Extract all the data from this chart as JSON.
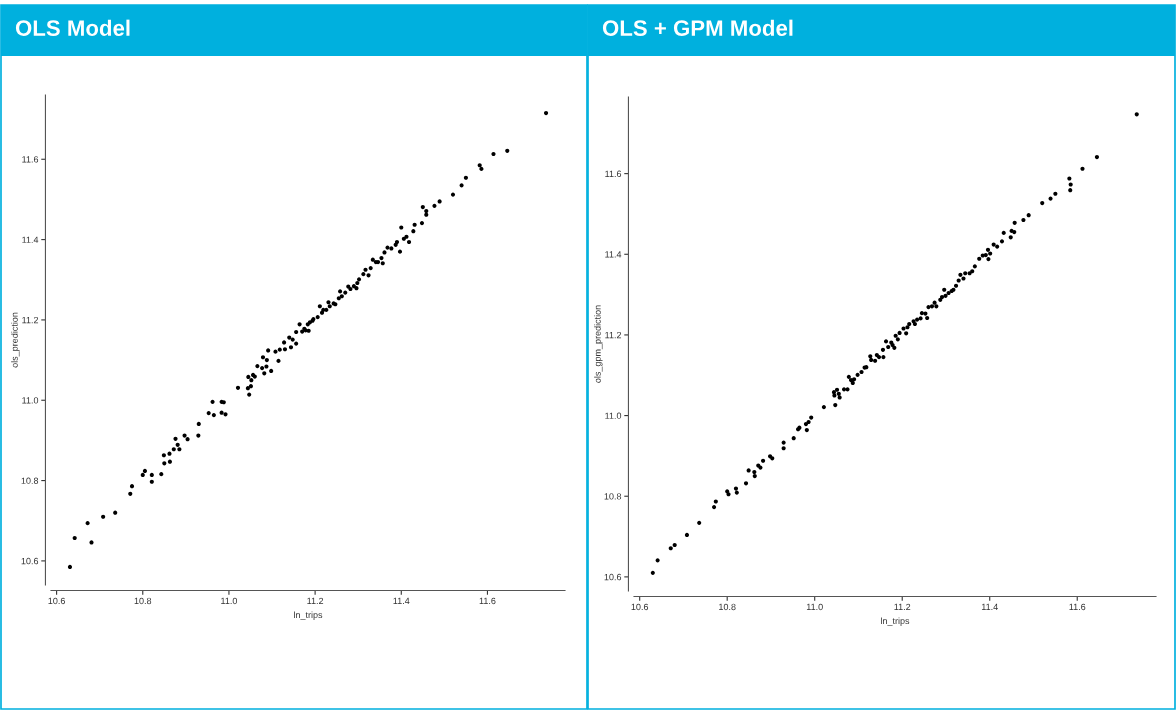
{
  "chart_data": [
    {
      "type": "scatter",
      "title": "OLS Model",
      "xlabel": "ln_trips",
      "ylabel": "ols_prediction",
      "color": "#000000",
      "marker": "circle",
      "grid": false,
      "xlim": [
        10.587,
        11.78
      ],
      "ylim": [
        10.54,
        11.76
      ],
      "xticks": [
        10.6,
        10.8,
        {
          "value": 11.0,
          "label": "11.0"
        },
        11.2,
        11.4,
        11.6
      ],
      "yticks": [
        10.6,
        10.8,
        {
          "value": 11.0,
          "label": "11.0"
        },
        11.2,
        11.4,
        11.6
      ],
      "x": [
        10.631,
        10.642,
        10.672,
        10.681,
        10.708,
        10.736,
        10.771,
        10.775,
        10.8,
        10.805,
        10.821,
        10.821,
        10.843,
        10.849,
        10.85,
        10.863,
        10.862,
        10.872,
        10.876,
        10.881,
        10.885,
        10.897,
        10.904,
        10.929,
        10.93,
        10.953,
        10.962,
        10.965,
        10.983,
        10.983,
        10.988,
        10.992,
        11.021,
        11.044,
        11.045,
        11.047,
        11.051,
        11.052,
        11.056,
        11.06,
        11.066,
        11.077,
        11.079,
        11.082,
        11.087,
        11.088,
        11.091,
        11.098,
        11.108,
        11.115,
        11.118,
        11.128,
        11.13,
        11.14,
        11.144,
        11.148,
        11.156,
        11.156,
        11.164,
        11.17,
        11.175,
        11.178,
        11.183,
        11.185,
        11.188,
        11.194,
        11.196,
        11.206,
        11.211,
        11.216,
        11.219,
        11.226,
        11.231,
        11.234,
        11.243,
        11.247,
        11.255,
        11.258,
        11.262,
        11.27,
        11.277,
        11.282,
        11.29,
        11.296,
        11.298,
        11.302,
        11.312,
        11.317,
        11.324,
        11.329,
        11.334,
        11.341,
        11.346,
        11.354,
        11.357,
        11.361,
        11.368,
        11.377,
        11.387,
        11.39,
        11.397,
        11.4,
        11.406,
        11.412,
        11.418,
        11.428,
        11.431,
        11.448,
        11.45,
        11.458,
        11.458,
        11.477,
        11.489,
        11.52,
        11.54,
        11.55,
        11.582,
        11.586,
        11.614,
        11.646,
        11.736
      ],
      "values": [
        10.585,
        10.657,
        10.694,
        10.646,
        10.71,
        10.72,
        10.767,
        10.786,
        10.814,
        10.824,
        10.797,
        10.814,
        10.816,
        10.863,
        10.843,
        10.847,
        10.867,
        10.878,
        10.904,
        10.889,
        10.878,
        10.912,
        10.903,
        10.912,
        10.941,
        10.968,
        10.996,
        10.963,
        10.996,
        10.969,
        10.995,
        10.965,
        11.031,
        11.03,
        11.058,
        11.014,
        11.035,
        11.05,
        11.063,
        11.059,
        11.085,
        11.08,
        11.107,
        11.067,
        11.084,
        11.1,
        11.124,
        11.073,
        11.121,
        11.098,
        11.126,
        11.144,
        11.127,
        11.156,
        11.132,
        11.151,
        11.141,
        11.17,
        11.189,
        11.171,
        11.178,
        11.174,
        11.189,
        11.173,
        11.194,
        11.198,
        11.202,
        11.207,
        11.234,
        11.218,
        11.225,
        11.225,
        11.244,
        11.234,
        11.241,
        11.239,
        11.254,
        11.271,
        11.259,
        11.268,
        11.283,
        11.277,
        11.284,
        11.279,
        11.292,
        11.301,
        11.314,
        11.325,
        11.311,
        11.329,
        11.35,
        11.344,
        11.344,
        11.354,
        11.341,
        11.368,
        11.38,
        11.378,
        11.387,
        11.394,
        11.37,
        11.43,
        11.402,
        11.407,
        11.394,
        11.421,
        11.437,
        11.441,
        11.481,
        11.462,
        11.471,
        11.484,
        11.495,
        11.512,
        11.535,
        11.554,
        11.585,
        11.576,
        11.613,
        11.621,
        11.715
      ]
    },
    {
      "type": "scatter",
      "title": "OLS + GPM Model",
      "xlabel": "ln_trips",
      "ylabel": "ols_gpm_prediction",
      "color": "#000000",
      "marker": "circle",
      "grid": false,
      "xlim": [
        10.587,
        11.78
      ],
      "ylim": [
        10.565,
        11.79
      ],
      "xticks": [
        10.6,
        10.8,
        {
          "value": 11.0,
          "label": "11.0"
        },
        11.2,
        11.4,
        11.6
      ],
      "yticks": [
        10.6,
        10.8,
        {
          "value": 11.0,
          "label": "11.0"
        },
        11.2,
        11.4,
        11.6
      ],
      "x": [
        10.63,
        10.641,
        10.671,
        10.68,
        10.708,
        10.736,
        10.77,
        10.774,
        10.8,
        10.803,
        10.82,
        10.822,
        10.843,
        10.849,
        10.862,
        10.863,
        10.871,
        10.876,
        10.882,
        10.898,
        10.903,
        10.929,
        10.929,
        10.952,
        10.962,
        10.965,
        10.98,
        10.982,
        10.986,
        10.992,
        11.021,
        11.044,
        11.045,
        11.047,
        11.051,
        11.055,
        11.057,
        11.067,
        11.075,
        11.078,
        11.083,
        11.087,
        11.09,
        11.098,
        11.107,
        11.114,
        11.118,
        11.127,
        11.129,
        11.138,
        11.142,
        11.147,
        11.156,
        11.157,
        11.163,
        11.168,
        11.175,
        11.178,
        11.182,
        11.185,
        11.19,
        11.194,
        11.203,
        11.209,
        11.212,
        11.216,
        11.226,
        11.229,
        11.234,
        11.242,
        11.245,
        11.253,
        11.257,
        11.26,
        11.268,
        11.274,
        11.278,
        11.287,
        11.291,
        11.296,
        11.299,
        11.306,
        11.313,
        11.317,
        11.323,
        11.329,
        11.333,
        11.34,
        11.344,
        11.354,
        11.36,
        11.366,
        11.376,
        11.384,
        11.391,
        11.396,
        11.397,
        11.401,
        11.409,
        11.417,
        11.428,
        11.432,
        11.448,
        11.45,
        11.456,
        11.457,
        11.477,
        11.489,
        11.52,
        11.539,
        11.55,
        11.582,
        11.585,
        11.584,
        11.612,
        11.645,
        11.736
      ],
      "values": [
        10.61,
        10.641,
        10.671,
        10.679,
        10.704,
        10.734,
        10.773,
        10.787,
        10.812,
        10.805,
        10.819,
        10.809,
        10.832,
        10.864,
        10.86,
        10.85,
        10.876,
        10.871,
        10.888,
        10.899,
        10.894,
        10.933,
        10.919,
        10.944,
        10.966,
        10.97,
        10.979,
        10.964,
        10.984,
        10.995,
        11.021,
        11.058,
        11.05,
        11.026,
        11.064,
        11.054,
        11.045,
        11.065,
        11.065,
        11.096,
        11.088,
        11.081,
        11.09,
        11.101,
        11.108,
        11.119,
        11.12,
        11.147,
        11.138,
        11.136,
        11.15,
        11.145,
        11.163,
        11.145,
        11.184,
        11.17,
        11.181,
        11.175,
        11.168,
        11.198,
        11.189,
        11.205,
        11.216,
        11.204,
        11.219,
        11.227,
        11.234,
        11.227,
        11.238,
        11.241,
        11.254,
        11.253,
        11.242,
        11.269,
        11.271,
        11.28,
        11.271,
        11.287,
        11.294,
        11.312,
        11.297,
        11.304,
        11.309,
        11.312,
        11.322,
        11.335,
        11.349,
        11.34,
        11.353,
        11.353,
        11.358,
        11.37,
        11.389,
        11.397,
        11.398,
        11.411,
        11.388,
        11.402,
        11.424,
        11.419,
        11.432,
        11.453,
        11.442,
        11.458,
        11.455,
        11.478,
        11.485,
        11.497,
        11.527,
        11.538,
        11.55,
        11.588,
        11.573,
        11.559,
        11.612,
        11.641,
        11.747
      ]
    }
  ]
}
